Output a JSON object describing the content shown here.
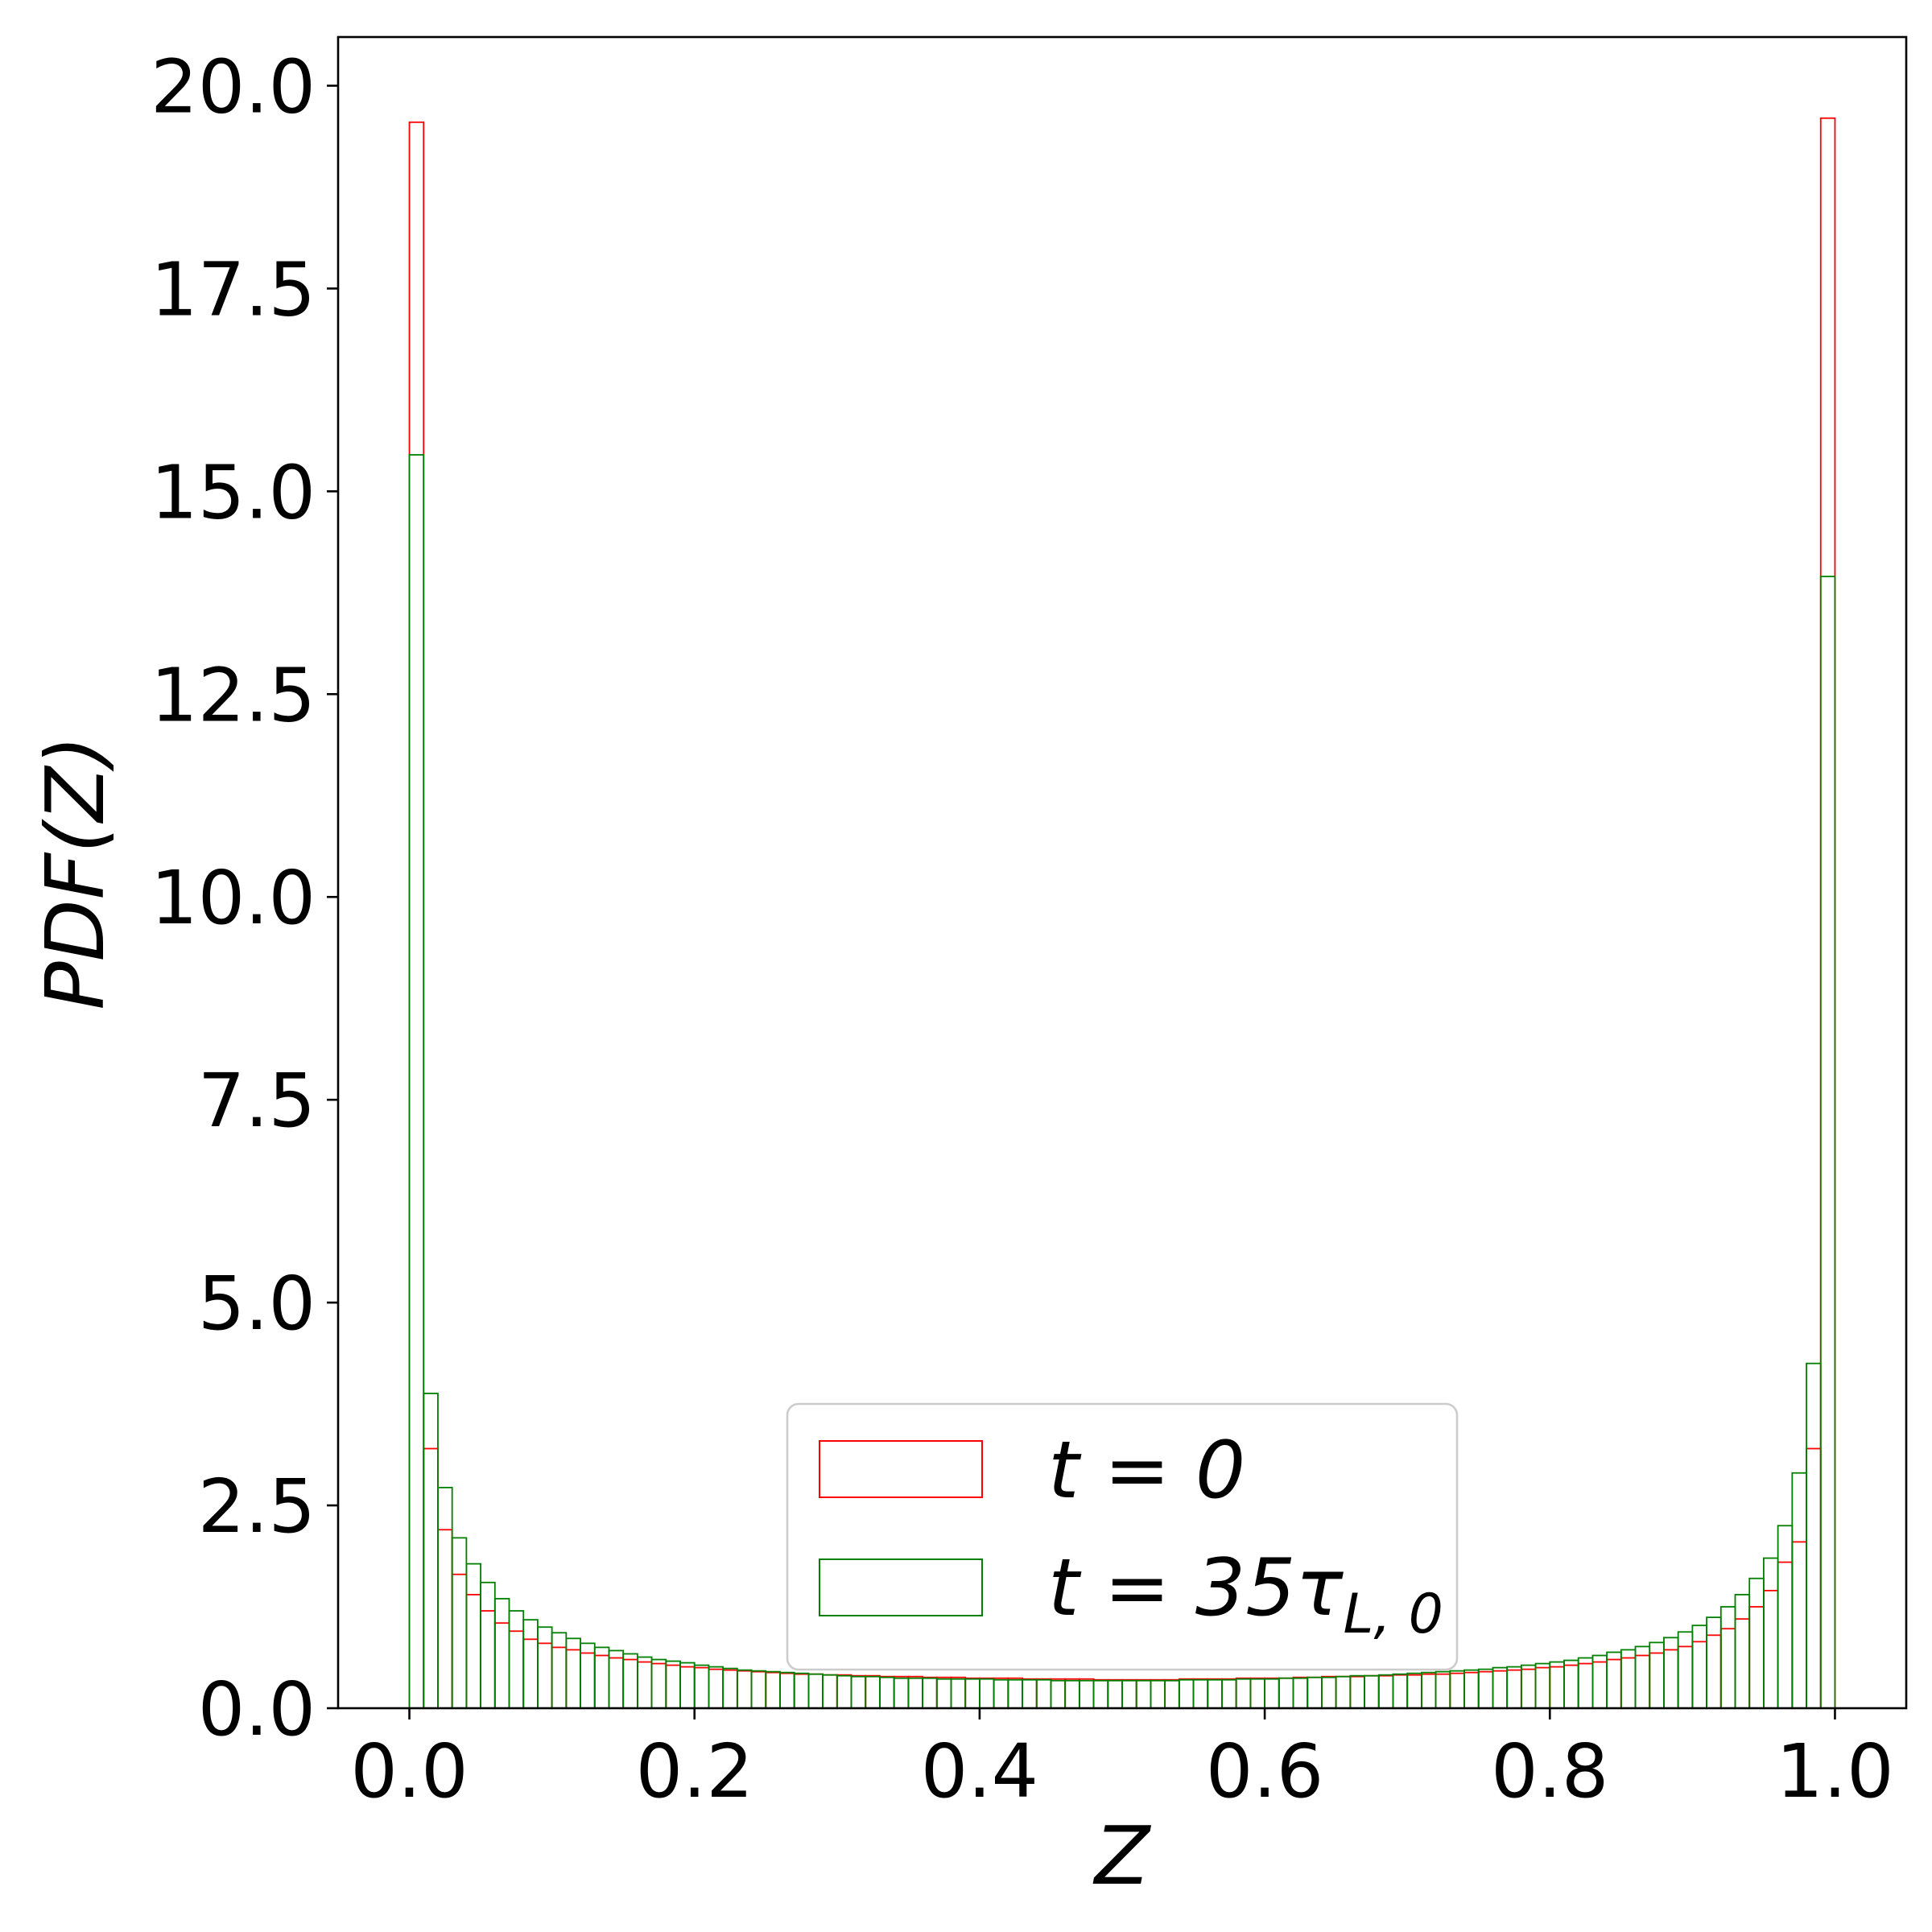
{
  "chart_data": {
    "type": "bar",
    "subtype": "step-histogram",
    "title": "",
    "xlabel": "Z",
    "ylabel": "PDF(Z)",
    "xlim": [
      -0.05,
      1.05
    ],
    "ylim": [
      0,
      20.6
    ],
    "x_ticks": [
      "0.0",
      "0.2",
      "0.4",
      "0.6",
      "0.8",
      "1.0"
    ],
    "y_ticks": [
      "0.0",
      "2.5",
      "5.0",
      "7.5",
      "10.0",
      "12.5",
      "15.0",
      "17.5",
      "20.0"
    ],
    "legend": {
      "placement": "lower center",
      "entries": [
        {
          "label_main": "t = 0",
          "label_sub": "",
          "color": "#ff0000"
        },
        {
          "label_main": "t = 35τ",
          "label_sub": "L, 0",
          "color": "#008000"
        }
      ]
    },
    "bins": {
      "start": 0.0,
      "end": 1.0,
      "count": 100
    },
    "series": [
      {
        "color": "#ff0000",
        "values": [
          19.55,
          3.2,
          2.2,
          1.65,
          1.4,
          1.2,
          1.05,
          0.95,
          0.85,
          0.8,
          0.75,
          0.72,
          0.68,
          0.65,
          0.62,
          0.6,
          0.57,
          0.55,
          0.53,
          0.51,
          0.5,
          0.48,
          0.47,
          0.46,
          0.45,
          0.44,
          0.43,
          0.42,
          0.42,
          0.41,
          0.41,
          0.4,
          0.4,
          0.39,
          0.39,
          0.39,
          0.38,
          0.38,
          0.38,
          0.37,
          0.37,
          0.37,
          0.37,
          0.36,
          0.36,
          0.36,
          0.36,
          0.36,
          0.35,
          0.35,
          0.35,
          0.35,
          0.35,
          0.35,
          0.36,
          0.36,
          0.36,
          0.36,
          0.37,
          0.37,
          0.37,
          0.37,
          0.38,
          0.38,
          0.39,
          0.39,
          0.39,
          0.4,
          0.4,
          0.41,
          0.41,
          0.42,
          0.42,
          0.43,
          0.44,
          0.45,
          0.46,
          0.47,
          0.48,
          0.5,
          0.51,
          0.53,
          0.55,
          0.57,
          0.6,
          0.62,
          0.65,
          0.68,
          0.72,
          0.76,
          0.82,
          0.9,
          0.98,
          1.1,
          1.25,
          1.45,
          1.8,
          2.05,
          3.2,
          19.6
        ]
      },
      {
        "color": "#008000",
        "values": [
          15.45,
          3.88,
          2.72,
          2.1,
          1.78,
          1.55,
          1.35,
          1.2,
          1.09,
          1.0,
          0.93,
          0.86,
          0.8,
          0.75,
          0.71,
          0.67,
          0.63,
          0.6,
          0.58,
          0.56,
          0.53,
          0.51,
          0.49,
          0.47,
          0.46,
          0.45,
          0.44,
          0.43,
          0.42,
          0.41,
          0.4,
          0.39,
          0.39,
          0.38,
          0.37,
          0.37,
          0.37,
          0.36,
          0.36,
          0.36,
          0.36,
          0.35,
          0.35,
          0.35,
          0.35,
          0.34,
          0.34,
          0.34,
          0.34,
          0.34,
          0.34,
          0.34,
          0.34,
          0.34,
          0.35,
          0.35,
          0.35,
          0.35,
          0.36,
          0.36,
          0.36,
          0.37,
          0.37,
          0.38,
          0.38,
          0.39,
          0.4,
          0.4,
          0.41,
          0.42,
          0.43,
          0.44,
          0.45,
          0.46,
          0.47,
          0.48,
          0.5,
          0.51,
          0.53,
          0.55,
          0.57,
          0.59,
          0.62,
          0.65,
          0.69,
          0.72,
          0.76,
          0.81,
          0.87,
          0.94,
          1.02,
          1.12,
          1.25,
          1.4,
          1.6,
          1.85,
          2.25,
          2.9,
          4.25,
          13.95
        ]
      }
    ]
  }
}
